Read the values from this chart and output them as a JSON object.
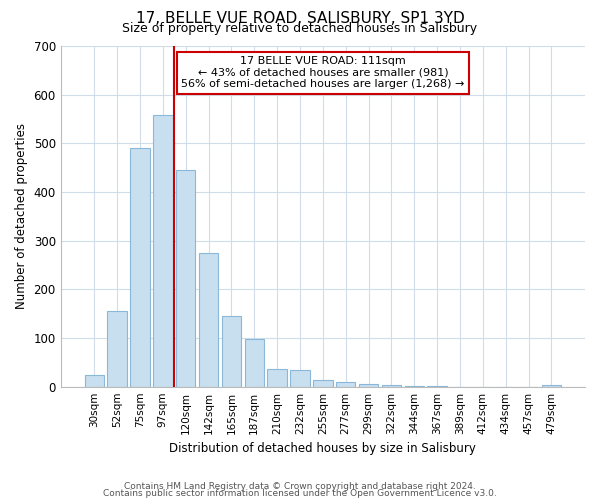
{
  "title": "17, BELLE VUE ROAD, SALISBURY, SP1 3YD",
  "subtitle": "Size of property relative to detached houses in Salisbury",
  "xlabel": "Distribution of detached houses by size in Salisbury",
  "ylabel": "Number of detached properties",
  "categories": [
    "30sqm",
    "52sqm",
    "75sqm",
    "97sqm",
    "120sqm",
    "142sqm",
    "165sqm",
    "187sqm",
    "210sqm",
    "232sqm",
    "255sqm",
    "277sqm",
    "299sqm",
    "322sqm",
    "344sqm",
    "367sqm",
    "389sqm",
    "412sqm",
    "434sqm",
    "457sqm",
    "479sqm"
  ],
  "values": [
    25,
    155,
    490,
    558,
    445,
    275,
    145,
    97,
    36,
    35,
    14,
    9,
    6,
    3,
    2,
    1,
    0,
    0,
    0,
    0,
    3
  ],
  "bar_color": "#c8dff0",
  "bar_edge_color": "#8ab8d8",
  "redline_index": 3,
  "annotation_line1": "17 BELLE VUE ROAD: 111sqm",
  "annotation_line2": "← 43% of detached houses are smaller (981)",
  "annotation_line3": "56% of semi-detached houses are larger (1,268) →",
  "ylim": [
    0,
    700
  ],
  "yticks": [
    0,
    100,
    200,
    300,
    400,
    500,
    600,
    700
  ],
  "footer1": "Contains HM Land Registry data © Crown copyright and database right 2024.",
  "footer2": "Contains public sector information licensed under the Open Government Licence v3.0.",
  "bg_color": "#ffffff",
  "plot_bg_color": "#ffffff",
  "grid_color": "#d0dce8"
}
